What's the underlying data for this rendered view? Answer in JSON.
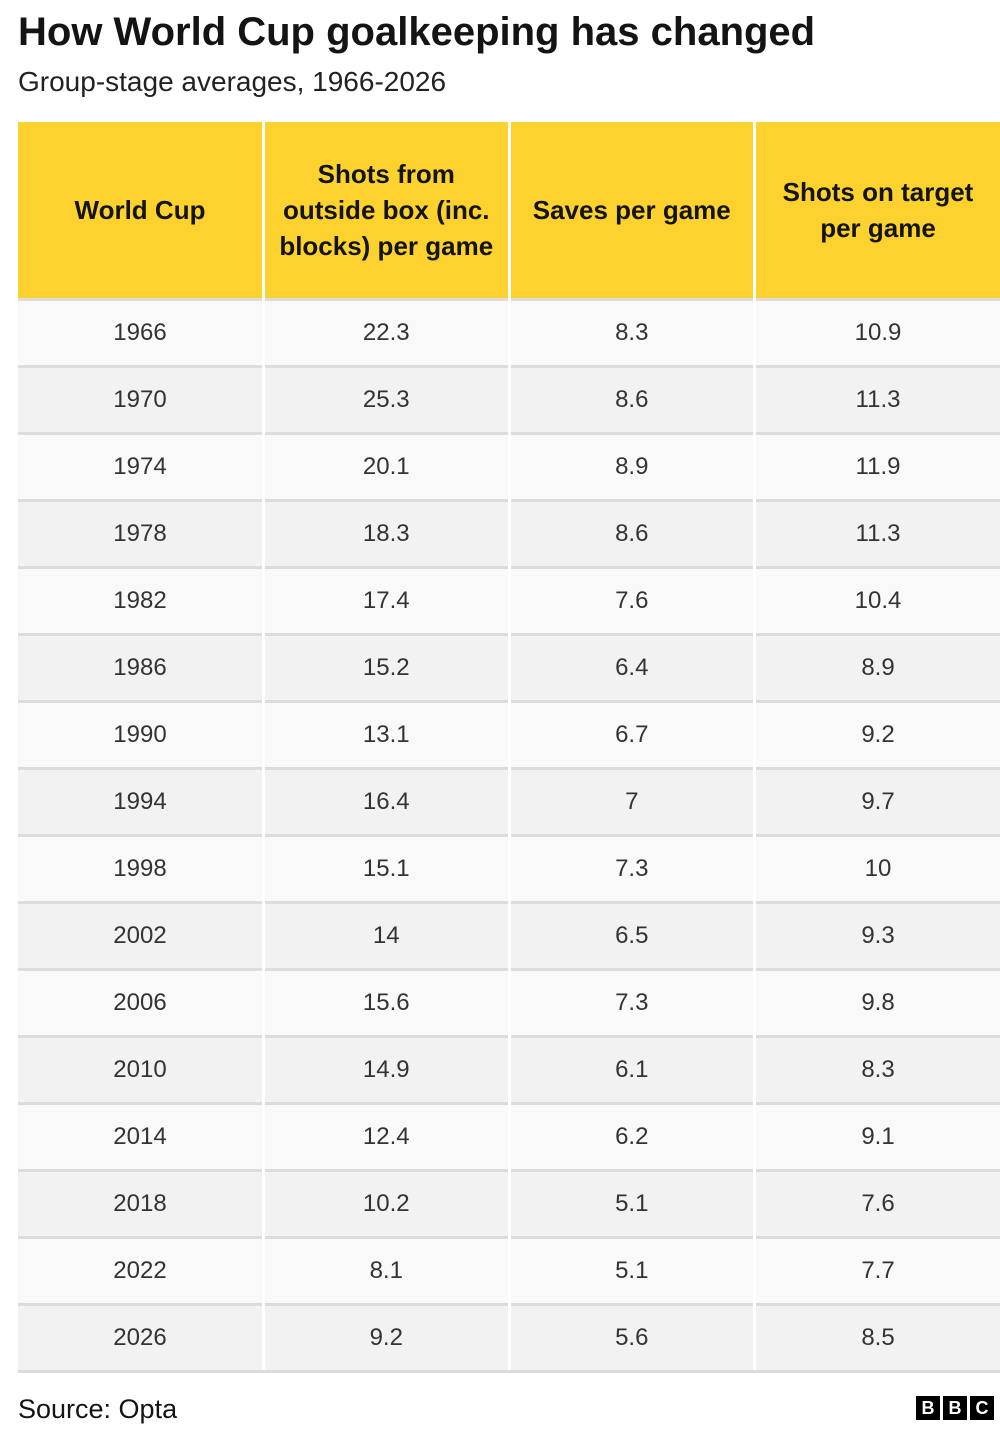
{
  "title": "How World Cup goalkeeping has changed",
  "subtitle": "Group-stage averages, 1966-2026",
  "source": "Source: Opta",
  "logo": [
    "B",
    "B",
    "C"
  ],
  "colors": {
    "header_bg": "#fdd22f",
    "row_light": "#f9f9f9",
    "row_dark": "#f2f2f2"
  },
  "chart_data": {
    "type": "table",
    "title": "How World Cup goalkeeping has changed",
    "subtitle": "Group-stage averages, 1966-2026",
    "columns": [
      "World Cup",
      "Shots from outside box (inc. blocks) per game",
      "Saves per game",
      "Shots on target per game"
    ],
    "rows": [
      [
        "1966",
        "22.3",
        "8.3",
        "10.9"
      ],
      [
        "1970",
        "25.3",
        "8.6",
        "11.3"
      ],
      [
        "1974",
        "20.1",
        "8.9",
        "11.9"
      ],
      [
        "1978",
        "18.3",
        "8.6",
        "11.3"
      ],
      [
        "1982",
        "17.4",
        "7.6",
        "10.4"
      ],
      [
        "1986",
        "15.2",
        "6.4",
        "8.9"
      ],
      [
        "1990",
        "13.1",
        "6.7",
        "9.2"
      ],
      [
        "1994",
        "16.4",
        "7",
        "9.7"
      ],
      [
        "1998",
        "15.1",
        "7.3",
        "10"
      ],
      [
        "2002",
        "14",
        "6.5",
        "9.3"
      ],
      [
        "2006",
        "15.6",
        "7.3",
        "9.8"
      ],
      [
        "2010",
        "14.9",
        "6.1",
        "8.3"
      ],
      [
        "2014",
        "12.4",
        "6.2",
        "9.1"
      ],
      [
        "2018",
        "10.2",
        "5.1",
        "7.6"
      ],
      [
        "2022",
        "8.1",
        "5.1",
        "7.7"
      ],
      [
        "2026",
        "9.2",
        "5.6",
        "8.5"
      ]
    ]
  }
}
